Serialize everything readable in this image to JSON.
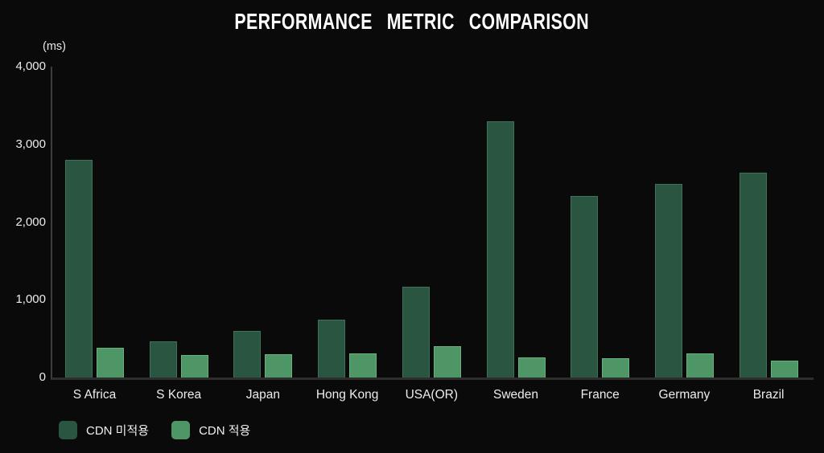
{
  "colors": {
    "background": "#0a0a0a",
    "axis_line": "#3d3d3d",
    "baseline": "#2e2e2e",
    "text": "#ececec",
    "title_text": "#ffffff"
  },
  "chart_data": {
    "type": "bar",
    "title": "PERFORMANCE METRIC COMPARISON",
    "ylabel": "(ms)",
    "xlabel": "",
    "categories": [
      "S Africa",
      "S Korea",
      "Japan",
      "Hong Kong",
      "USA(OR)",
      "Sweden",
      "France",
      "Germany",
      "Brazil"
    ],
    "series": [
      {
        "name": "CDN 미적용",
        "color": "#2a5541",
        "border_color": "#3e7158",
        "values": [
          2800,
          470,
          600,
          740,
          1170,
          3300,
          2340,
          2490,
          2640
        ]
      },
      {
        "name": "CDN 적용",
        "color": "#4f9667",
        "border_color": "#68b080",
        "values": [
          380,
          290,
          300,
          310,
          400,
          260,
          250,
          310,
          220
        ]
      }
    ],
    "ylim": [
      0,
      4000
    ],
    "yticks": [
      0,
      1000,
      2000,
      3000,
      4000
    ],
    "grid": false,
    "legend_position": "bottom-left"
  }
}
